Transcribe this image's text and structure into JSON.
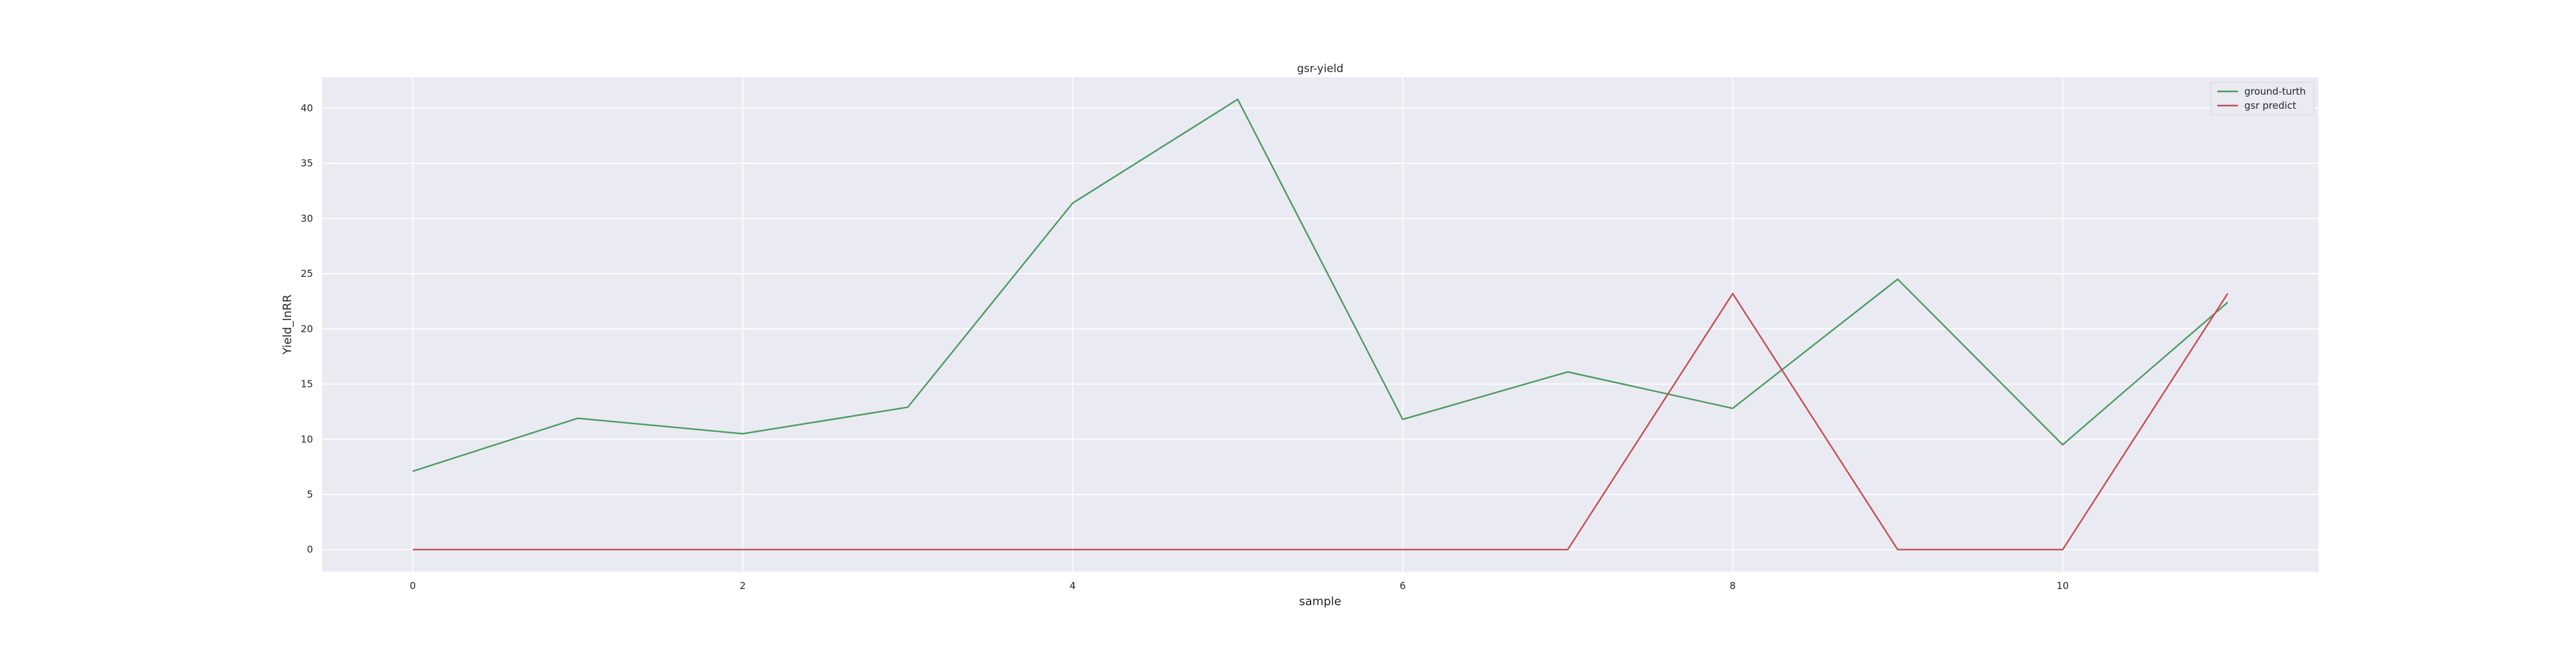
{
  "chart_data": {
    "type": "line",
    "title": "gsr-yield",
    "xlabel": "sample",
    "ylabel": "Yield_lnRR",
    "xlim": [
      -0.55,
      11.55
    ],
    "ylim": [
      -2.0,
      42.8
    ],
    "xticks": [
      0,
      2,
      4,
      6,
      8,
      10
    ],
    "yticks": [
      0,
      5,
      10,
      15,
      20,
      25,
      30,
      35,
      40
    ],
    "grid": true,
    "legend_position": "top-right",
    "x": [
      0,
      1,
      2,
      3,
      4,
      5,
      6,
      7,
      8,
      9,
      10,
      11
    ],
    "series": [
      {
        "name": "ground-turth",
        "color": "#4c9a62",
        "values": [
          7.1,
          11.9,
          10.5,
          12.9,
          31.4,
          40.8,
          11.8,
          16.1,
          12.8,
          24.5,
          9.5,
          22.4
        ]
      },
      {
        "name": "gsr predict",
        "color": "#c44e52",
        "values": [
          0,
          0,
          0,
          0,
          0,
          0,
          0,
          0,
          23.2,
          0,
          0,
          23.2
        ]
      }
    ],
    "colors": {
      "plot_background": "#eaeaf2",
      "grid": "#ffffff"
    }
  }
}
